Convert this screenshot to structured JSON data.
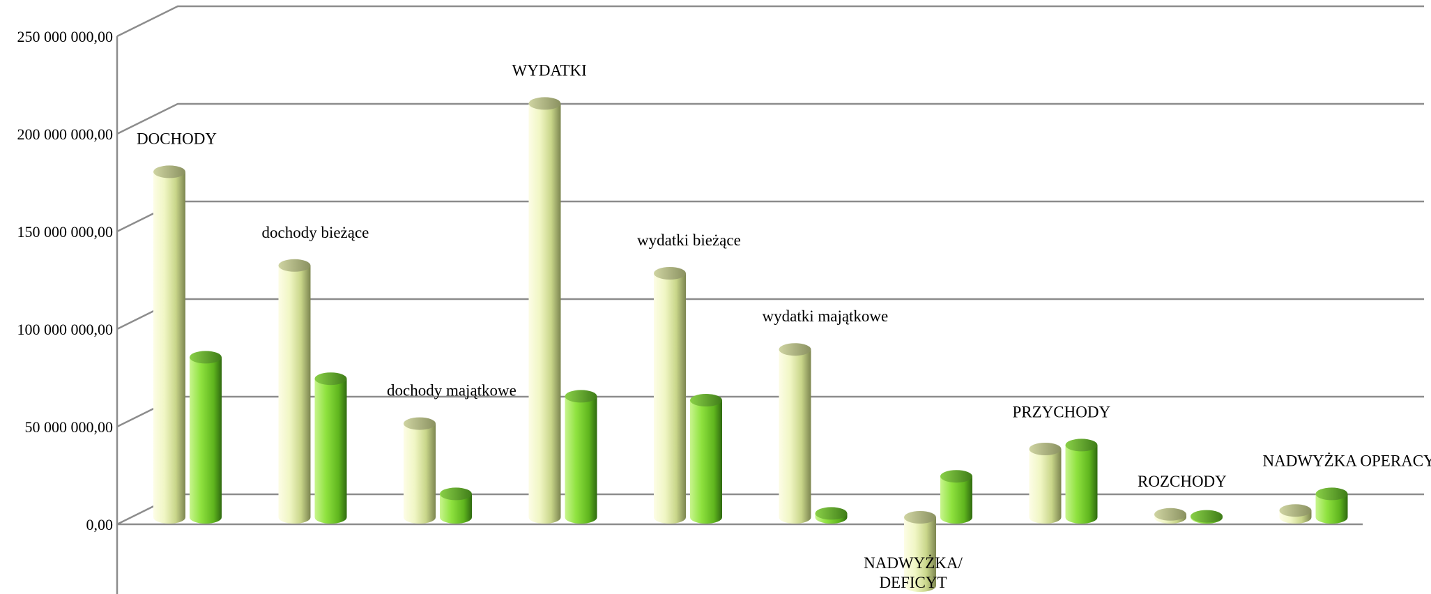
{
  "chart_data": {
    "type": "bar",
    "style": "3d-cylinder",
    "categories": [
      "DOCHODY",
      "dochody bieżące",
      "dochody majątkowe",
      "WYDATKI",
      "wydatki bieżące",
      "wydatki majątkowe",
      "NADWYŻKA/ DEFICYT",
      "PRZYCHODY",
      "ROZCHODY",
      "NADWYŻKA  OPERACYJNA"
    ],
    "series": [
      {
        "values": [
          177000000,
          129000000,
          48000000,
          212000000,
          125000000,
          86000000,
          -35000000,
          35000000,
          1500000,
          3500000
        ]
      },
      {
        "values": [
          82000000,
          71000000,
          12000000,
          62000000,
          60000000,
          2000000,
          21000000,
          37000000,
          500000,
          12000000
        ]
      }
    ],
    "yticks": [
      "0,00",
      "50 000 000,00",
      "100 000 000,00",
      "150 000 000,00",
      "200 000 000,00",
      "250 000 000,00"
    ],
    "ylim": [
      -35000000,
      250000000
    ],
    "grid": true,
    "legend": "none",
    "colors": {
      "series1": "#e2eda6",
      "series2": "#7fd832",
      "grid": "#8c8c8c"
    }
  }
}
